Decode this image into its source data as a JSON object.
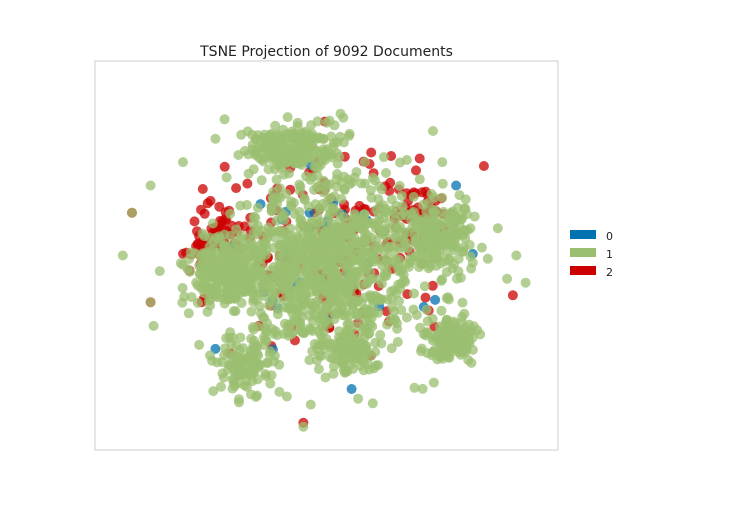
{
  "chart_data": {
    "type": "scatter",
    "title": "TSNE Projection of 9092 Documents",
    "xlabel": "",
    "ylabel": "",
    "grid": false,
    "axis_ticks": false,
    "legend_placement": "right-outside",
    "series": [
      {
        "name": "0",
        "color": "#0072B2"
      },
      {
        "name": "1",
        "color": "#9BBF70"
      },
      {
        "name": "2",
        "color": "#CC0000"
      }
    ],
    "clusters": [
      {
        "series": "1",
        "center": [
          0.5,
          0.52
        ],
        "spread": [
          0.17,
          0.2
        ],
        "count": 900
      },
      {
        "series": "1",
        "center": [
          0.43,
          0.23
        ],
        "spread": [
          0.09,
          0.06
        ],
        "count": 220
      },
      {
        "series": "1",
        "center": [
          0.28,
          0.55
        ],
        "spread": [
          0.07,
          0.08
        ],
        "count": 260
      },
      {
        "series": "1",
        "center": [
          0.74,
          0.45
        ],
        "spread": [
          0.07,
          0.1
        ],
        "count": 200
      },
      {
        "series": "1",
        "center": [
          0.77,
          0.72
        ],
        "spread": [
          0.05,
          0.05
        ],
        "count": 150
      },
      {
        "series": "1",
        "center": [
          0.33,
          0.78
        ],
        "spread": [
          0.05,
          0.07
        ],
        "count": 110
      },
      {
        "series": "1",
        "center": [
          0.55,
          0.75
        ],
        "spread": [
          0.05,
          0.05
        ],
        "count": 90
      },
      {
        "series": "2",
        "center": [
          0.5,
          0.48
        ],
        "spread": [
          0.22,
          0.22
        ],
        "count": 170
      },
      {
        "series": "2",
        "center": [
          0.27,
          0.45
        ],
        "spread": [
          0.06,
          0.06
        ],
        "count": 60
      },
      {
        "series": "2",
        "center": [
          0.7,
          0.38
        ],
        "spread": [
          0.07,
          0.07
        ],
        "count": 50
      },
      {
        "series": "0",
        "center": [
          0.48,
          0.5
        ],
        "spread": [
          0.2,
          0.22
        ],
        "count": 35
      }
    ],
    "outliers": [
      {
        "series": "2",
        "point": [
          0.08,
          0.39
        ]
      },
      {
        "series": "1",
        "point": [
          0.08,
          0.39
        ]
      },
      {
        "series": "1",
        "point": [
          0.06,
          0.5
        ]
      },
      {
        "series": "2",
        "point": [
          0.12,
          0.62
        ]
      },
      {
        "series": "1",
        "point": [
          0.12,
          0.62
        ]
      },
      {
        "series": "1",
        "point": [
          0.14,
          0.54
        ]
      },
      {
        "series": "1",
        "point": [
          0.12,
          0.32
        ]
      },
      {
        "series": "1",
        "point": [
          0.19,
          0.26
        ]
      },
      {
        "series": "1",
        "point": [
          0.28,
          0.15
        ]
      },
      {
        "series": "1",
        "point": [
          0.26,
          0.2
        ]
      },
      {
        "series": "1",
        "point": [
          0.73,
          0.18
        ]
      },
      {
        "series": "1",
        "point": [
          0.75,
          0.26
        ]
      },
      {
        "series": "2",
        "point": [
          0.84,
          0.27
        ]
      },
      {
        "series": "1",
        "point": [
          0.82,
          0.4
        ]
      },
      {
        "series": "1",
        "point": [
          0.87,
          0.43
        ]
      },
      {
        "series": "1",
        "point": [
          0.91,
          0.5
        ]
      },
      {
        "series": "1",
        "point": [
          0.93,
          0.57
        ]
      },
      {
        "series": "1",
        "point": [
          0.89,
          0.56
        ]
      },
      {
        "series": "0",
        "point": [
          0.78,
          0.32
        ]
      },
      {
        "series": "1",
        "point": [
          0.45,
          0.94
        ]
      },
      {
        "series": "2",
        "point": [
          0.45,
          0.93
        ]
      },
      {
        "series": "1",
        "point": [
          0.6,
          0.88
        ]
      },
      {
        "series": "1",
        "point": [
          0.69,
          0.84
        ]
      },
      {
        "series": "1",
        "point": [
          0.35,
          0.86
        ]
      },
      {
        "series": "2",
        "point": [
          0.23,
          0.62
        ]
      },
      {
        "series": "0",
        "point": [
          0.26,
          0.74
        ]
      }
    ]
  }
}
